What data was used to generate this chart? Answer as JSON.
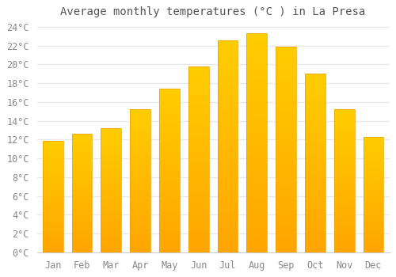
{
  "title": "Average monthly temperatures (°C ) in La Presa",
  "months": [
    "Jan",
    "Feb",
    "Mar",
    "Apr",
    "May",
    "Jun",
    "Jul",
    "Aug",
    "Sep",
    "Oct",
    "Nov",
    "Dec"
  ],
  "temperatures": [
    11.9,
    12.6,
    13.2,
    15.2,
    17.4,
    19.8,
    22.6,
    23.3,
    21.9,
    19.0,
    15.2,
    12.3
  ],
  "bar_color_top": "#FFCD00",
  "bar_color_bottom": "#FFA500",
  "bar_edge_color": "#E8A000",
  "background_color": "#FFFFFF",
  "plot_bg_color": "#FFFFFF",
  "grid_color": "#E8E8E8",
  "ylim": [
    0,
    24
  ],
  "ytick_step": 2,
  "title_fontsize": 10,
  "tick_fontsize": 8.5,
  "tick_font_family": "monospace",
  "tick_color": "#888888",
  "title_color": "#555555"
}
